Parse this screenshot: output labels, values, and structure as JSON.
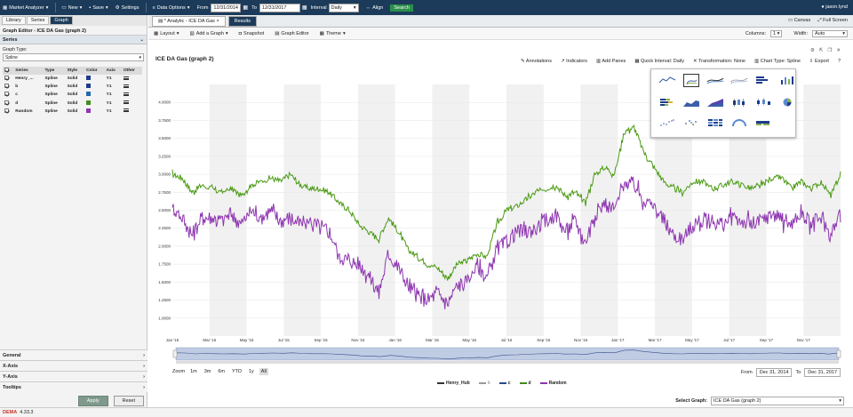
{
  "topbar": {
    "market_analyzer": "Market Analyzer",
    "new": "New",
    "save": "Save",
    "settings": "Settings",
    "data_options": "Data Options",
    "from_label": "From",
    "from_date": "12/31/2014",
    "to_label": "To",
    "to_date": "12/31/2017",
    "interval_label": "Interval",
    "interval_value": "Daily",
    "align": "Align",
    "search": "Search",
    "user": "jason.lynd"
  },
  "left": {
    "tabs": [
      "Library",
      "Series",
      "Graph"
    ],
    "header": "Graph Editor - ICE DA Gas (graph 2)",
    "series_section": "Series",
    "graph_type_label": "Graph Type:",
    "graph_type_value": "Spline",
    "table_headers": [
      "Series",
      "Type",
      "Style",
      "Color",
      "Axis",
      "Other"
    ],
    "rows": [
      {
        "name": "Henry_...",
        "type": "Spline",
        "style": "Solid",
        "color": "#1f3a8a",
        "axis": "Y1"
      },
      {
        "name": "b",
        "type": "Spline",
        "style": "Solid",
        "color": "#1f3a8a",
        "axis": "Y1"
      },
      {
        "name": "c",
        "type": "Spline",
        "style": "Solid",
        "color": "#1f6aa8",
        "axis": "Y1"
      },
      {
        "name": "d",
        "type": "Spline",
        "style": "Solid",
        "color": "#3f8d1f",
        "axis": "Y1"
      },
      {
        "name": "Random",
        "type": "Spline",
        "style": "Solid",
        "color": "#8e35b0",
        "axis": "Y1"
      }
    ],
    "bottom_sections": [
      "General",
      "X-Axis",
      "Y-Axis",
      "Tooltips"
    ],
    "apply": "Apply",
    "reset": "Reset"
  },
  "main": {
    "tabs": [
      "* Analytic - ICE DA Gas",
      "Results"
    ],
    "canvas": "Canvas",
    "full_screen": "Full Screen",
    "toolbar": [
      "Layout",
      "Add a Graph",
      "Snapshot",
      "Graph Editor",
      "Theme"
    ],
    "columns_label": "Columns:",
    "columns_value": "1",
    "width_label": "Width:",
    "width_value": "Auto",
    "graph_title": "ICE DA Gas (graph 2)",
    "chart_tools": [
      "Annotations",
      "Indicators",
      "Add Panes",
      "Quick Interval: Daily",
      "Transformation: None",
      "Chart Type: Spline",
      "Export"
    ],
    "zoom_label": "Zoom",
    "zoom_buttons": [
      "1m",
      "3m",
      "6m",
      "YTD",
      "1y",
      "All"
    ],
    "from_label": "From",
    "from_value": "Dec 31, 2014",
    "to_label": "To",
    "to_value": "Dec 31, 2017",
    "select_graph_label": "Select Graph:",
    "select_graph_value": "ICE DA Gas (graph 2)"
  },
  "status": {
    "version": "4.33.3",
    "logo": "DEMA"
  },
  "chart_data": {
    "type": "line",
    "title": "ICE DA Gas (graph 2)",
    "ylim": [
      0.75,
      4.25
    ],
    "yticks": [
      "1.0000",
      "1.2500",
      "1.5000",
      "1.7500",
      "2.0000",
      "2.2500",
      "2.5000",
      "2.7500",
      "3.0000",
      "3.2500",
      "3.5000",
      "3.7500",
      "4.0000"
    ],
    "xticks": [
      "Jan '15",
      "Mar '15",
      "May '15",
      "Jul '15",
      "Sep '15",
      "Nov '15",
      "Jan '16",
      "Mar '16",
      "May '16",
      "Jul '16",
      "Sep '16",
      "Nov '16",
      "Jan '17",
      "Mar '17",
      "May '17",
      "Jul '17",
      "Sep '17",
      "Nov '17"
    ],
    "legend": [
      {
        "name": "Henry_Hub",
        "color": "#333333"
      },
      {
        "name": "b",
        "color": "#999999"
      },
      {
        "name": "c",
        "color": "#2b4c8c"
      },
      {
        "name": "d",
        "color": "#3f8d1f"
      },
      {
        "name": "Random",
        "color": "#8e35b0"
      }
    ],
    "series": [
      {
        "name": "d",
        "color": "#4a9a12",
        "values": [
          3.0,
          2.95,
          2.75,
          2.85,
          2.8,
          2.75,
          2.8,
          2.7,
          2.85,
          2.9,
          2.95,
          2.9,
          3.0,
          2.85,
          2.8,
          2.8,
          2.75,
          2.6,
          2.5,
          2.3,
          2.2,
          2.1,
          2.4,
          2.2,
          1.95,
          1.85,
          1.75,
          1.7,
          1.55,
          1.75,
          1.8,
          1.9,
          1.85,
          2.3,
          2.5,
          2.55,
          2.65,
          2.75,
          2.8,
          2.85,
          2.7,
          2.75,
          2.6,
          3.0,
          3.1,
          3.0,
          3.6,
          3.65,
          3.3,
          3.1,
          2.9,
          2.8,
          2.75,
          2.9,
          2.9,
          2.8,
          2.85,
          2.9,
          2.85,
          2.8,
          2.85,
          2.95,
          2.95,
          2.8,
          2.9,
          2.8,
          2.9,
          2.7,
          3.0
        ]
      },
      {
        "name": "Random",
        "color": "#8e35b0",
        "values": [
          2.55,
          2.4,
          2.15,
          2.4,
          2.4,
          2.35,
          2.45,
          2.3,
          2.5,
          2.4,
          2.5,
          2.35,
          2.4,
          2.3,
          2.35,
          2.25,
          2.2,
          1.85,
          1.8,
          1.75,
          1.6,
          1.35,
          1.9,
          1.7,
          1.45,
          1.3,
          1.25,
          1.35,
          1.2,
          1.45,
          1.5,
          1.75,
          1.55,
          1.95,
          2.05,
          2.2,
          2.2,
          2.25,
          2.35,
          2.45,
          2.2,
          2.35,
          2.05,
          2.45,
          2.6,
          2.5,
          2.9,
          2.85,
          2.65,
          2.55,
          2.35,
          2.15,
          2.1,
          2.3,
          2.35,
          2.35,
          2.3,
          2.4,
          2.35,
          2.3,
          2.35,
          2.45,
          2.4,
          2.3,
          2.45,
          2.3,
          2.4,
          2.15,
          2.45
        ]
      }
    ]
  }
}
